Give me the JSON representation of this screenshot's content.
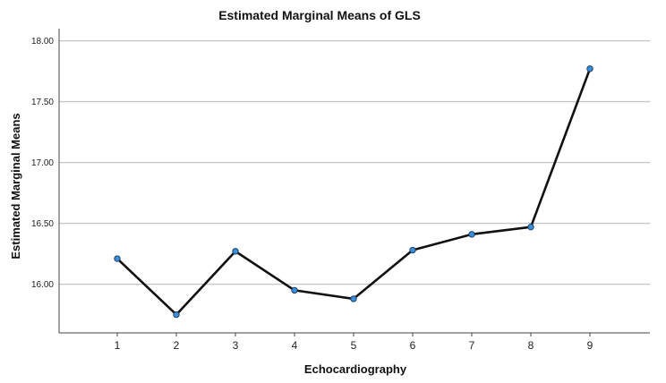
{
  "chart_data": {
    "type": "line",
    "title": "Estimated Marginal Means of GLS",
    "xlabel": "Echocardiography",
    "ylabel": "Estimated Marginal Means",
    "categories": [
      "1",
      "2",
      "3",
      "4",
      "5",
      "6",
      "7",
      "8",
      "9"
    ],
    "series": [
      {
        "values": [
          16.21,
          15.75,
          16.27,
          15.95,
          15.88,
          16.28,
          16.41,
          16.47,
          17.77
        ]
      }
    ],
    "yticks": [
      "16.00",
      "16.50",
      "17.00",
      "17.50",
      "18.00"
    ],
    "ylim": [
      15.6,
      18.1
    ],
    "grid": true,
    "line_color": "#111111",
    "marker_color": "#3a8fd8"
  }
}
